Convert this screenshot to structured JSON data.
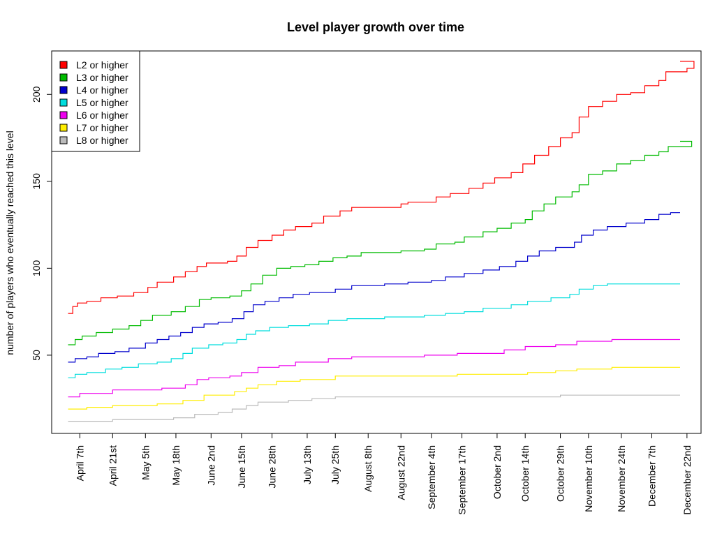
{
  "chart_data": {
    "type": "line",
    "title": "Level player growth over time",
    "xlabel": "",
    "ylabel": "number of players who eventually reached this level",
    "xlim": [
      "2011-03-26",
      "2011-12-28"
    ],
    "ylim": [
      5,
      225
    ],
    "y_ticks": [
      50,
      100,
      150,
      200
    ],
    "x_ticks": [
      {
        "date": "2011-04-07",
        "label": "April 7th"
      },
      {
        "date": "2011-04-21",
        "label": "April 21st"
      },
      {
        "date": "2011-05-05",
        "label": "May 5th"
      },
      {
        "date": "2011-05-18",
        "label": "May 18th"
      },
      {
        "date": "2011-06-02",
        "label": "June 2nd"
      },
      {
        "date": "2011-06-15",
        "label": "June 15th"
      },
      {
        "date": "2011-06-28",
        "label": "June 28th"
      },
      {
        "date": "2011-07-13",
        "label": "July 13th"
      },
      {
        "date": "2011-07-25",
        "label": "July 25th"
      },
      {
        "date": "2011-08-08",
        "label": "August 8th"
      },
      {
        "date": "2011-08-22",
        "label": "August 22nd"
      },
      {
        "date": "2011-09-04",
        "label": "September 4th"
      },
      {
        "date": "2011-09-17",
        "label": "September 17th"
      },
      {
        "date": "2011-10-02",
        "label": "October 2nd"
      },
      {
        "date": "2011-10-14",
        "label": "October 14th"
      },
      {
        "date": "2011-10-29",
        "label": "October 29th"
      },
      {
        "date": "2011-11-10",
        "label": "November 10th"
      },
      {
        "date": "2011-11-24",
        "label": "November 24th"
      },
      {
        "date": "2011-12-07",
        "label": "December 7th"
      },
      {
        "date": "2011-12-22",
        "label": "December 22nd"
      }
    ],
    "step": true,
    "grid": false,
    "legend_position": "top-left",
    "series": [
      {
        "name": "L2 or higher",
        "color": "#ff0000",
        "points": [
          [
            "2011-04-02",
            74
          ],
          [
            "2011-04-04",
            78
          ],
          [
            "2011-04-06",
            80
          ],
          [
            "2011-04-10",
            81
          ],
          [
            "2011-04-16",
            83
          ],
          [
            "2011-04-23",
            84
          ],
          [
            "2011-04-30",
            86
          ],
          [
            "2011-05-06",
            89
          ],
          [
            "2011-05-10",
            92
          ],
          [
            "2011-05-17",
            95
          ],
          [
            "2011-05-22",
            98
          ],
          [
            "2011-05-27",
            101
          ],
          [
            "2011-05-31",
            103
          ],
          [
            "2011-06-09",
            104
          ],
          [
            "2011-06-13",
            107
          ],
          [
            "2011-06-17",
            112
          ],
          [
            "2011-06-22",
            116
          ],
          [
            "2011-06-28",
            119
          ],
          [
            "2011-07-03",
            122
          ],
          [
            "2011-07-08",
            124
          ],
          [
            "2011-07-15",
            126
          ],
          [
            "2011-07-20",
            130
          ],
          [
            "2011-07-27",
            133
          ],
          [
            "2011-08-01",
            135
          ],
          [
            "2011-08-22",
            137
          ],
          [
            "2011-08-25",
            138
          ],
          [
            "2011-09-06",
            141
          ],
          [
            "2011-09-12",
            143
          ],
          [
            "2011-09-20",
            146
          ],
          [
            "2011-09-26",
            149
          ],
          [
            "2011-10-01",
            152
          ],
          [
            "2011-10-08",
            155
          ],
          [
            "2011-10-13",
            160
          ],
          [
            "2011-10-18",
            165
          ],
          [
            "2011-10-24",
            170
          ],
          [
            "2011-10-29",
            175
          ],
          [
            "2011-11-03",
            178
          ],
          [
            "2011-11-06",
            187
          ],
          [
            "2011-11-10",
            193
          ],
          [
            "2011-11-16",
            196
          ],
          [
            "2011-11-22",
            200
          ],
          [
            "2011-11-28",
            201
          ],
          [
            "2011-12-04",
            205
          ],
          [
            "2011-12-10",
            208
          ],
          [
            "2011-12-13",
            213
          ],
          [
            "2011-12-22",
            215
          ],
          [
            "2011-12-25",
            219
          ]
        ]
      },
      {
        "name": "L3 or higher",
        "color": "#00bb00",
        "points": [
          [
            "2011-04-02",
            56
          ],
          [
            "2011-04-05",
            59
          ],
          [
            "2011-04-08",
            61
          ],
          [
            "2011-04-14",
            63
          ],
          [
            "2011-04-21",
            65
          ],
          [
            "2011-04-28",
            67
          ],
          [
            "2011-05-03",
            70
          ],
          [
            "2011-05-08",
            73
          ],
          [
            "2011-05-16",
            75
          ],
          [
            "2011-05-22",
            78
          ],
          [
            "2011-05-28",
            82
          ],
          [
            "2011-06-02",
            83
          ],
          [
            "2011-06-10",
            84
          ],
          [
            "2011-06-15",
            87
          ],
          [
            "2011-06-19",
            91
          ],
          [
            "2011-06-24",
            96
          ],
          [
            "2011-06-30",
            100
          ],
          [
            "2011-07-06",
            101
          ],
          [
            "2011-07-12",
            102
          ],
          [
            "2011-07-18",
            104
          ],
          [
            "2011-07-24",
            106
          ],
          [
            "2011-07-30",
            107
          ],
          [
            "2011-08-05",
            109
          ],
          [
            "2011-08-22",
            110
          ],
          [
            "2011-09-01",
            111
          ],
          [
            "2011-09-06",
            114
          ],
          [
            "2011-09-14",
            115
          ],
          [
            "2011-09-18",
            118
          ],
          [
            "2011-09-26",
            121
          ],
          [
            "2011-10-02",
            123
          ],
          [
            "2011-10-08",
            126
          ],
          [
            "2011-10-14",
            128
          ],
          [
            "2011-10-17",
            133
          ],
          [
            "2011-10-22",
            137
          ],
          [
            "2011-10-27",
            141
          ],
          [
            "2011-11-03",
            144
          ],
          [
            "2011-11-06",
            148
          ],
          [
            "2011-11-10",
            154
          ],
          [
            "2011-11-16",
            156
          ],
          [
            "2011-11-22",
            160
          ],
          [
            "2011-11-28",
            162
          ],
          [
            "2011-12-04",
            165
          ],
          [
            "2011-12-10",
            167
          ],
          [
            "2011-12-14",
            170
          ],
          [
            "2011-12-24",
            173
          ]
        ]
      },
      {
        "name": "L4 or higher",
        "color": "#0000cc",
        "points": [
          [
            "2011-04-02",
            46
          ],
          [
            "2011-04-05",
            48
          ],
          [
            "2011-04-10",
            49
          ],
          [
            "2011-04-15",
            51
          ],
          [
            "2011-04-22",
            52
          ],
          [
            "2011-04-28",
            54
          ],
          [
            "2011-05-05",
            57
          ],
          [
            "2011-05-10",
            59
          ],
          [
            "2011-05-15",
            61
          ],
          [
            "2011-05-20",
            63
          ],
          [
            "2011-05-25",
            66
          ],
          [
            "2011-05-30",
            68
          ],
          [
            "2011-06-05",
            69
          ],
          [
            "2011-06-11",
            71
          ],
          [
            "2011-06-16",
            75
          ],
          [
            "2011-06-20",
            79
          ],
          [
            "2011-06-25",
            81
          ],
          [
            "2011-07-01",
            83
          ],
          [
            "2011-07-07",
            85
          ],
          [
            "2011-07-14",
            86
          ],
          [
            "2011-07-25",
            88
          ],
          [
            "2011-08-01",
            90
          ],
          [
            "2011-08-15",
            91
          ],
          [
            "2011-08-25",
            92
          ],
          [
            "2011-09-04",
            93
          ],
          [
            "2011-09-10",
            95
          ],
          [
            "2011-09-18",
            97
          ],
          [
            "2011-09-26",
            99
          ],
          [
            "2011-10-03",
            101
          ],
          [
            "2011-10-10",
            104
          ],
          [
            "2011-10-15",
            107
          ],
          [
            "2011-10-20",
            110
          ],
          [
            "2011-10-27",
            112
          ],
          [
            "2011-11-04",
            115
          ],
          [
            "2011-11-07",
            119
          ],
          [
            "2011-11-12",
            122
          ],
          [
            "2011-11-18",
            124
          ],
          [
            "2011-11-26",
            126
          ],
          [
            "2011-12-04",
            128
          ],
          [
            "2011-12-10",
            131
          ],
          [
            "2011-12-15",
            132
          ]
        ]
      },
      {
        "name": "L5 or higher",
        "color": "#00dddd",
        "points": [
          [
            "2011-04-02",
            37
          ],
          [
            "2011-04-05",
            39
          ],
          [
            "2011-04-10",
            40
          ],
          [
            "2011-04-18",
            42
          ],
          [
            "2011-04-25",
            43
          ],
          [
            "2011-05-02",
            45
          ],
          [
            "2011-05-10",
            46
          ],
          [
            "2011-05-16",
            48
          ],
          [
            "2011-05-21",
            51
          ],
          [
            "2011-05-25",
            54
          ],
          [
            "2011-06-01",
            56
          ],
          [
            "2011-06-07",
            57
          ],
          [
            "2011-06-13",
            59
          ],
          [
            "2011-06-17",
            62
          ],
          [
            "2011-06-21",
            64
          ],
          [
            "2011-06-27",
            66
          ],
          [
            "2011-07-05",
            67
          ],
          [
            "2011-07-14",
            68
          ],
          [
            "2011-07-22",
            70
          ],
          [
            "2011-07-30",
            71
          ],
          [
            "2011-08-15",
            72
          ],
          [
            "2011-09-01",
            73
          ],
          [
            "2011-09-10",
            74
          ],
          [
            "2011-09-18",
            75
          ],
          [
            "2011-09-26",
            77
          ],
          [
            "2011-10-08",
            79
          ],
          [
            "2011-10-15",
            81
          ],
          [
            "2011-10-25",
            83
          ],
          [
            "2011-11-02",
            85
          ],
          [
            "2011-11-06",
            88
          ],
          [
            "2011-11-12",
            90
          ],
          [
            "2011-11-18",
            91
          ]
        ]
      },
      {
        "name": "L6 or higher",
        "color": "#ee00ee",
        "points": [
          [
            "2011-04-02",
            26
          ],
          [
            "2011-04-07",
            28
          ],
          [
            "2011-04-21",
            30
          ],
          [
            "2011-05-12",
            31
          ],
          [
            "2011-05-22",
            33
          ],
          [
            "2011-05-27",
            36
          ],
          [
            "2011-06-01",
            37
          ],
          [
            "2011-06-10",
            38
          ],
          [
            "2011-06-15",
            40
          ],
          [
            "2011-06-22",
            43
          ],
          [
            "2011-07-01",
            44
          ],
          [
            "2011-07-08",
            46
          ],
          [
            "2011-07-22",
            48
          ],
          [
            "2011-08-01",
            49
          ],
          [
            "2011-09-01",
            50
          ],
          [
            "2011-09-15",
            51
          ],
          [
            "2011-10-05",
            53
          ],
          [
            "2011-10-14",
            55
          ],
          [
            "2011-10-27",
            56
          ],
          [
            "2011-11-05",
            58
          ],
          [
            "2011-11-20",
            59
          ]
        ]
      },
      {
        "name": "L7 or higher",
        "color": "#ffee00",
        "points": [
          [
            "2011-04-02",
            19
          ],
          [
            "2011-04-10",
            20
          ],
          [
            "2011-04-21",
            21
          ],
          [
            "2011-05-10",
            22
          ],
          [
            "2011-05-21",
            24
          ],
          [
            "2011-05-30",
            27
          ],
          [
            "2011-06-12",
            29
          ],
          [
            "2011-06-17",
            31
          ],
          [
            "2011-06-22",
            33
          ],
          [
            "2011-06-30",
            35
          ],
          [
            "2011-07-10",
            36
          ],
          [
            "2011-07-25",
            38
          ],
          [
            "2011-09-15",
            39
          ],
          [
            "2011-10-15",
            40
          ],
          [
            "2011-10-27",
            41
          ],
          [
            "2011-11-05",
            42
          ],
          [
            "2011-11-20",
            43
          ]
        ]
      },
      {
        "name": "L8 or higher",
        "color": "#bbbbbb",
        "points": [
          [
            "2011-04-02",
            12
          ],
          [
            "2011-04-21",
            13
          ],
          [
            "2011-05-17",
            14
          ],
          [
            "2011-05-26",
            16
          ],
          [
            "2011-06-05",
            17
          ],
          [
            "2011-06-11",
            19
          ],
          [
            "2011-06-17",
            21
          ],
          [
            "2011-06-22",
            23
          ],
          [
            "2011-07-05",
            24
          ],
          [
            "2011-07-15",
            25
          ],
          [
            "2011-07-25",
            26
          ],
          [
            "2011-10-29",
            27
          ]
        ]
      }
    ]
  }
}
